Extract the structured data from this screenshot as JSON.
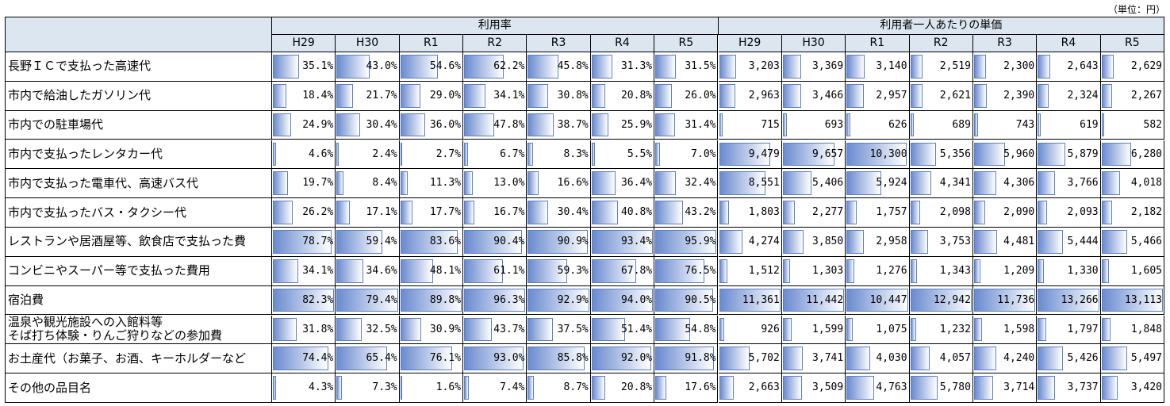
{
  "unit": "（単位：円）",
  "table": {
    "groups": [
      "利用率",
      "利用者一人あたりの単価"
    ],
    "years": [
      "H29",
      "H30",
      "R1",
      "R2",
      "R3",
      "R4",
      "R5"
    ],
    "rows": [
      {
        "label": "長野ＩＣで支払った高速代",
        "rates": [
          35.1,
          43.0,
          54.6,
          62.2,
          45.8,
          31.3,
          31.5
        ],
        "rate_labels": [
          "35.1%",
          "43.0%",
          "54.6%",
          "62.2%",
          "45.8%",
          "31.3%",
          "31.5%"
        ],
        "prices": [
          3203,
          3369,
          3140,
          2519,
          2300,
          2643,
          2629
        ],
        "price_labels": [
          "3,203",
          "3,369",
          "3,140",
          "2,519",
          "2,300",
          "2,643",
          "2,629"
        ]
      },
      {
        "label": "市内で給油したガソリン代",
        "rates": [
          18.4,
          21.7,
          29.0,
          34.1,
          30.8,
          20.8,
          26.0
        ],
        "rate_labels": [
          "18.4%",
          "21.7%",
          "29.0%",
          "34.1%",
          "30.8%",
          "20.8%",
          "26.0%"
        ],
        "prices": [
          2963,
          3466,
          2957,
          2621,
          2390,
          2324,
          2267
        ],
        "price_labels": [
          "2,963",
          "3,466",
          "2,957",
          "2,621",
          "2,390",
          "2,324",
          "2,267"
        ]
      },
      {
        "label": "市内での駐車場代",
        "rates": [
          24.9,
          30.4,
          36.0,
          47.8,
          38.7,
          25.9,
          31.4
        ],
        "rate_labels": [
          "24.9%",
          "30.4%",
          "36.0%",
          "47.8%",
          "38.7%",
          "25.9%",
          "31.4%"
        ],
        "prices": [
          715,
          693,
          626,
          689,
          743,
          619,
          582
        ],
        "price_labels": [
          "715",
          "693",
          "626",
          "689",
          "743",
          "619",
          "582"
        ]
      },
      {
        "label": "市内で支払ったレンタカー代",
        "rates": [
          4.6,
          2.4,
          2.7,
          6.7,
          8.3,
          5.5,
          7.0
        ],
        "rate_labels": [
          "4.6%",
          "2.4%",
          "2.7%",
          "6.7%",
          "8.3%",
          "5.5%",
          "7.0%"
        ],
        "prices": [
          9479,
          9657,
          10300,
          5356,
          5960,
          5879,
          6280
        ],
        "price_labels": [
          "9,479",
          "9,657",
          "10,300",
          "5,356",
          "5,960",
          "5,879",
          "6,280"
        ]
      },
      {
        "label": "市内で支払った電車代、高速バス代",
        "rates": [
          19.7,
          8.4,
          11.3,
          13.0,
          16.6,
          36.4,
          32.4
        ],
        "rate_labels": [
          "19.7%",
          "8.4%",
          "11.3%",
          "13.0%",
          "16.6%",
          "36.4%",
          "32.4%"
        ],
        "prices": [
          8551,
          5406,
          5924,
          4341,
          4306,
          3766,
          4018
        ],
        "price_labels": [
          "8,551",
          "5,406",
          "5,924",
          "4,341",
          "4,306",
          "3,766",
          "4,018"
        ]
      },
      {
        "label": "市内で支払ったバス・タクシー代",
        "rates": [
          26.2,
          17.1,
          17.7,
          16.7,
          30.4,
          40.8,
          43.2
        ],
        "rate_labels": [
          "26.2%",
          "17.1%",
          "17.7%",
          "16.7%",
          "30.4%",
          "40.8%",
          "43.2%"
        ],
        "prices": [
          1803,
          2277,
          1757,
          2098,
          2090,
          2093,
          2182
        ],
        "price_labels": [
          "1,803",
          "2,277",
          "1,757",
          "2,098",
          "2,090",
          "2,093",
          "2,182"
        ]
      },
      {
        "label": "レストランや居酒屋等、飲食店で支払った費",
        "rates": [
          78.7,
          59.4,
          83.6,
          90.4,
          90.9,
          93.4,
          95.9
        ],
        "rate_labels": [
          "78.7%",
          "59.4%",
          "83.6%",
          "90.4%",
          "90.9%",
          "93.4%",
          "95.9%"
        ],
        "prices": [
          4274,
          3850,
          2958,
          3753,
          4481,
          5444,
          5466
        ],
        "price_labels": [
          "4,274",
          "3,850",
          "2,958",
          "3,753",
          "4,481",
          "5,444",
          "5,466"
        ]
      },
      {
        "label": "コンビニやスーパー等で支払った費用",
        "rates": [
          34.1,
          34.6,
          48.1,
          61.1,
          59.3,
          67.8,
          76.5
        ],
        "rate_labels": [
          "34.1%",
          "34.6%",
          "48.1%",
          "61.1%",
          "59.3%",
          "67.8%",
          "76.5%"
        ],
        "prices": [
          1512,
          1303,
          1276,
          1343,
          1209,
          1330,
          1605
        ],
        "price_labels": [
          "1,512",
          "1,303",
          "1,276",
          "1,343",
          "1,209",
          "1,330",
          "1,605"
        ]
      },
      {
        "label": "宿泊費",
        "rates": [
          82.3,
          79.4,
          89.8,
          96.3,
          92.9,
          94.0,
          90.5
        ],
        "rate_labels": [
          "82.3%",
          "79.4%",
          "89.8%",
          "96.3%",
          "92.9%",
          "94.0%",
          "90.5%"
        ],
        "prices": [
          11361,
          11442,
          10447,
          12942,
          11736,
          13266,
          13113
        ],
        "price_labels": [
          "11,361",
          "11,442",
          "10,447",
          "12,942",
          "11,736",
          "13,266",
          "13,113"
        ]
      },
      {
        "label": "温泉や観光施設への入館料等\nそば打ち体験・りんご狩りなどの参加費",
        "rates": [
          31.8,
          32.5,
          30.9,
          43.7,
          37.5,
          51.4,
          54.8
        ],
        "rate_labels": [
          "31.8%",
          "32.5%",
          "30.9%",
          "43.7%",
          "37.5%",
          "51.4%",
          "54.8%"
        ],
        "prices": [
          926,
          1599,
          1075,
          1232,
          1598,
          1797,
          1848
        ],
        "price_labels": [
          "926",
          "1,599",
          "1,075",
          "1,232",
          "1,598",
          "1,797",
          "1,848"
        ]
      },
      {
        "label": "お土産代（お菓子、お酒、キーホルダーなど",
        "rates": [
          74.4,
          65.4,
          76.1,
          93.0,
          85.8,
          92.0,
          91.8
        ],
        "rate_labels": [
          "74.4%",
          "65.4%",
          "76.1%",
          "93.0%",
          "85.8%",
          "92.0%",
          "91.8%"
        ],
        "prices": [
          5702,
          3741,
          4030,
          4057,
          4240,
          5426,
          5497
        ],
        "price_labels": [
          "5,702",
          "3,741",
          "4,030",
          "4,057",
          "4,240",
          "5,426",
          "5,497"
        ]
      },
      {
        "label": "その他の品目名",
        "rates": [
          4.3,
          7.3,
          1.6,
          7.4,
          8.7,
          20.8,
          17.6
        ],
        "rate_labels": [
          "4.3%",
          "7.3%",
          "1.6%",
          "7.4%",
          "8.7%",
          "20.8%",
          "17.6%"
        ],
        "prices": [
          2663,
          3509,
          4763,
          5780,
          3714,
          3737,
          3420
        ],
        "price_labels": [
          "2,663",
          "3,509",
          "4,763",
          "5,780",
          "3,714",
          "3,737",
          "3,420"
        ]
      }
    ]
  }
}
